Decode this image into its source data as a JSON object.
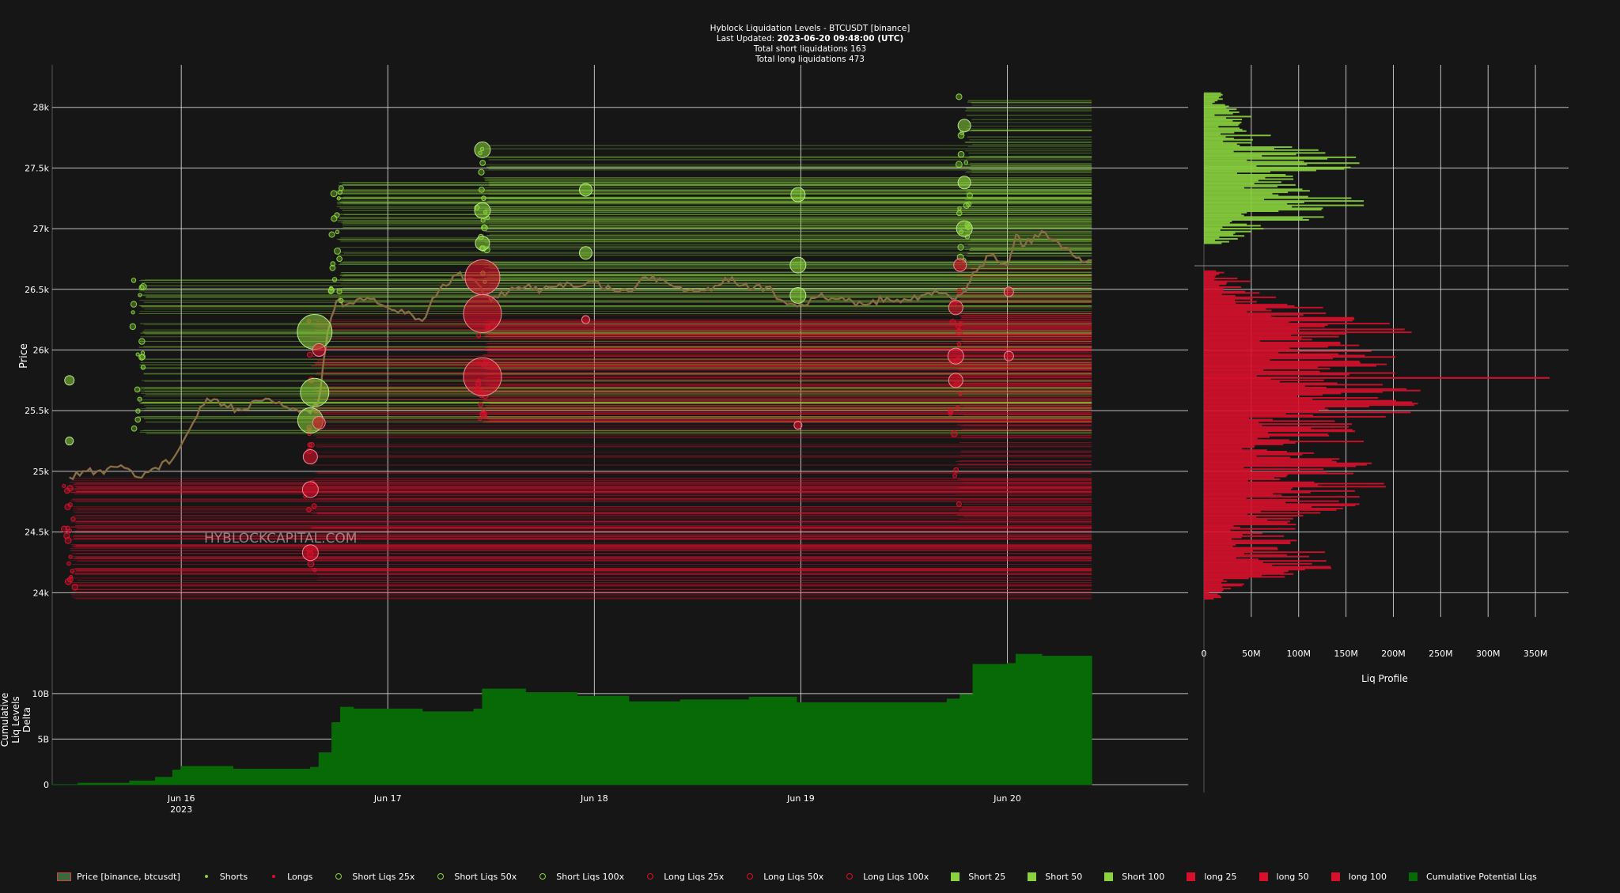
{
  "title": {
    "line1": "Hyblock Liquidation Levels - BTCUSDT [binance]",
    "line2_prefix": "Last Updated:",
    "line2_value": "2023-06-20 09:48:00 (UTC)",
    "line3": "Total short liquidations 163",
    "line4": "Total long liquidations 473"
  },
  "watermark": "HYBLOCKCAPITAL.COM",
  "colors": {
    "background": "#161616",
    "short": "#8ad33d",
    "long": "#d8102c",
    "price_up": "#3d9a3d",
    "price_down": "#d63a4c",
    "cumulative": "#086a06",
    "grid": "#dddddd"
  },
  "chart_data": [
    {
      "type": "line",
      "panel": "price",
      "ylabel": "Price",
      "ylim": [
        23800,
        28350
      ],
      "xlim": [
        "2023-06-15 09:00",
        "2023-06-20 21:00"
      ],
      "yticks": [
        {
          "value": 24000,
          "label": "24k"
        },
        {
          "value": 24500,
          "label": "24.5k"
        },
        {
          "value": 25000,
          "label": "25k"
        },
        {
          "value": 25500,
          "label": "25.5k"
        },
        {
          "value": 26000,
          "label": "26k"
        },
        {
          "value": 26500,
          "label": "26.5k"
        },
        {
          "value": 27000,
          "label": "27k"
        },
        {
          "value": 27500,
          "label": "27.5k"
        },
        {
          "value": 28000,
          "label": "28k"
        }
      ],
      "xticks": [
        {
          "value": "2023-06-16 00:00",
          "label": "Jun 16",
          "sub": "2023"
        },
        {
          "value": "2023-06-17 00:00",
          "label": "Jun 17",
          "sub": ""
        },
        {
          "value": "2023-06-18 00:00",
          "label": "Jun 18",
          "sub": ""
        },
        {
          "value": "2023-06-19 00:00",
          "label": "Jun 19",
          "sub": ""
        },
        {
          "value": "2023-06-20 00:00",
          "label": "Jun 20",
          "sub": ""
        }
      ],
      "price": {
        "name": "Price [binance, btcusdt]",
        "x": [
          "2023-06-15 11:00",
          "2023-06-15 13:00",
          "2023-06-15 15:00",
          "2023-06-15 17:00",
          "2023-06-15 19:00",
          "2023-06-15 21:00",
          "2023-06-15 23:00",
          "2023-06-16 01:00",
          "2023-06-16 03:00",
          "2023-06-16 05:00",
          "2023-06-16 07:00",
          "2023-06-16 09:00",
          "2023-06-16 11:00",
          "2023-06-16 13:00",
          "2023-06-16 15:00",
          "2023-06-16 16:00",
          "2023-06-16 17:00",
          "2023-06-16 18:00",
          "2023-06-16 20:00",
          "2023-06-16 22:00",
          "2023-06-17 00:00",
          "2023-06-17 02:00",
          "2023-06-17 04:00",
          "2023-06-17 06:00",
          "2023-06-17 08:00",
          "2023-06-17 10:00",
          "2023-06-17 12:00",
          "2023-06-17 14:00",
          "2023-06-17 16:00",
          "2023-06-17 18:00",
          "2023-06-17 20:00",
          "2023-06-17 22:00",
          "2023-06-18 00:00",
          "2023-06-18 02:00",
          "2023-06-18 04:00",
          "2023-06-18 06:00",
          "2023-06-18 08:00",
          "2023-06-18 10:00",
          "2023-06-18 12:00",
          "2023-06-18 14:00",
          "2023-06-18 16:00",
          "2023-06-18 18:00",
          "2023-06-18 20:00",
          "2023-06-18 22:00",
          "2023-06-19 00:00",
          "2023-06-19 02:00",
          "2023-06-19 04:00",
          "2023-06-19 06:00",
          "2023-06-19 08:00",
          "2023-06-19 10:00",
          "2023-06-19 12:00",
          "2023-06-19 14:00",
          "2023-06-19 16:00",
          "2023-06-19 18:00",
          "2023-06-19 19:00",
          "2023-06-19 20:00",
          "2023-06-19 22:00",
          "2023-06-20 00:00",
          "2023-06-20 01:00",
          "2023-06-20 02:00",
          "2023-06-20 04:00",
          "2023-06-20 06:00",
          "2023-06-20 08:00",
          "2023-06-20 09:48"
        ],
        "y": [
          24950,
          25000,
          24980,
          25050,
          24950,
          25030,
          25100,
          25350,
          25600,
          25550,
          25500,
          25580,
          25560,
          25520,
          25480,
          25600,
          26150,
          26400,
          26380,
          26420,
          26350,
          26300,
          26240,
          26500,
          26620,
          26580,
          26400,
          26480,
          26520,
          26500,
          26550,
          26520,
          26560,
          26500,
          26480,
          26600,
          26580,
          26520,
          26480,
          26530,
          26600,
          26500,
          26520,
          26400,
          26380,
          26440,
          26420,
          26400,
          26380,
          26430,
          26420,
          26450,
          26470,
          26420,
          26480,
          26640,
          26780,
          26700,
          26950,
          26860,
          26980,
          26880,
          26760,
          26740
        ]
      },
      "short_clusters": [
        {
          "x": "2023-06-16 15:30",
          "price": 26150,
          "size": 22
        },
        {
          "x": "2023-06-16 15:30",
          "price": 25650,
          "size": 18
        },
        {
          "x": "2023-06-16 15:00",
          "price": 25420,
          "size": 16
        },
        {
          "x": "2023-06-17 11:00",
          "price": 27650,
          "size": 10
        },
        {
          "x": "2023-06-17 11:00",
          "price": 27150,
          "size": 10
        },
        {
          "x": "2023-06-17 11:00",
          "price": 26880,
          "size": 9
        },
        {
          "x": "2023-06-17 23:00",
          "price": 26800,
          "size": 8
        },
        {
          "x": "2023-06-17 23:00",
          "price": 27320,
          "size": 8
        },
        {
          "x": "2023-06-18 23:40",
          "price": 26700,
          "size": 10
        },
        {
          "x": "2023-06-18 23:40",
          "price": 26450,
          "size": 10
        },
        {
          "x": "2023-06-18 23:40",
          "price": 27280,
          "size": 9
        },
        {
          "x": "2023-06-19 19:00",
          "price": 27850,
          "size": 8
        },
        {
          "x": "2023-06-19 19:00",
          "price": 27000,
          "size": 10
        },
        {
          "x": "2023-06-19 19:00",
          "price": 27380,
          "size": 8
        },
        {
          "x": "2023-06-15 11:00",
          "price": 25750,
          "size": 6
        },
        {
          "x": "2023-06-15 11:00",
          "price": 25250,
          "size": 5
        }
      ],
      "long_clusters": [
        {
          "x": "2023-06-17 11:00",
          "price": 26600,
          "size": 22
        },
        {
          "x": "2023-06-17 11:00",
          "price": 26300,
          "size": 24
        },
        {
          "x": "2023-06-17 11:00",
          "price": 25780,
          "size": 24
        },
        {
          "x": "2023-06-16 15:00",
          "price": 24330,
          "size": 10
        },
        {
          "x": "2023-06-16 15:00",
          "price": 24850,
          "size": 10
        },
        {
          "x": "2023-06-16 15:00",
          "price": 25120,
          "size": 9
        },
        {
          "x": "2023-06-16 16:00",
          "price": 26000,
          "size": 8
        },
        {
          "x": "2023-06-16 16:00",
          "price": 25400,
          "size": 8
        },
        {
          "x": "2023-06-19 18:00",
          "price": 25950,
          "size": 10
        },
        {
          "x": "2023-06-19 18:00",
          "price": 25750,
          "size": 9
        },
        {
          "x": "2023-06-19 18:00",
          "price": 26350,
          "size": 9
        },
        {
          "x": "2023-06-19 18:30",
          "price": 26700,
          "size": 8
        },
        {
          "x": "2023-06-20 00:10",
          "price": 25950,
          "size": 6
        },
        {
          "x": "2023-06-20 00:10",
          "price": 26480,
          "size": 6
        },
        {
          "x": "2023-06-17 23:00",
          "price": 26250,
          "size": 5
        },
        {
          "x": "2023-06-18 23:40",
          "price": 25380,
          "size": 5
        }
      ],
      "short_level_starts": [
        {
          "x": "2023-06-15 19:00",
          "from": 25300,
          "to": 26600
        },
        {
          "x": "2023-06-16 18:00",
          "from": 26400,
          "to": 27400
        },
        {
          "x": "2023-06-17 11:00",
          "from": 26500,
          "to": 27700
        },
        {
          "x": "2023-06-19 19:00",
          "from": 26600,
          "to": 28100
        }
      ],
      "long_level_starts": [
        {
          "x": "2023-06-15 11:00",
          "from": 23950,
          "to": 24950
        },
        {
          "x": "2023-06-16 15:00",
          "from": 24100,
          "to": 26300
        },
        {
          "x": "2023-06-17 11:00",
          "from": 25400,
          "to": 26250
        },
        {
          "x": "2023-06-19 18:00",
          "from": 24600,
          "to": 26700
        }
      ],
      "levels_end": "2023-06-20 09:48"
    },
    {
      "type": "bar",
      "panel": "liq_profile",
      "xlabel": "Liq Profile",
      "xlim": [
        0,
        385
      ],
      "x_unit": "M",
      "xticks": [
        {
          "value": 0,
          "label": "0"
        },
        {
          "value": 50,
          "label": "50M"
        },
        {
          "value": 100,
          "label": "100M"
        },
        {
          "value": 150,
          "label": "150M"
        },
        {
          "value": 200,
          "label": "200M"
        },
        {
          "value": 250,
          "label": "250M"
        },
        {
          "value": 300,
          "label": "300M"
        },
        {
          "value": 350,
          "label": "350M"
        }
      ],
      "shorts_total": {
        "prices": [
          26900,
          27000,
          27100,
          27200,
          27300,
          27400,
          27500,
          27600,
          27700,
          27800,
          27900,
          28000,
          28100
        ],
        "values": [
          30,
          60,
          120,
          170,
          110,
          80,
          165,
          150,
          70,
          60,
          50,
          30,
          20
        ]
      },
      "longs_total": {
        "prices": [
          24000,
          24200,
          24400,
          24600,
          24800,
          25000,
          25200,
          25400,
          25600,
          25800,
          26000,
          26200,
          26400,
          26600
        ],
        "values": [
          20,
          120,
          110,
          90,
          180,
          160,
          150,
          180,
          220,
          200,
          180,
          200,
          80,
          40
        ]
      },
      "max_bar": {
        "price": 25770,
        "value": 365
      }
    },
    {
      "type": "area",
      "panel": "cumulative",
      "name": "Cumulative Potential Liqs",
      "ylabel": "Cumulative Liq Levels Delta",
      "ylim": [
        0,
        14500
      ],
      "y_unit": "M",
      "yticks": [
        {
          "value": 0,
          "label": "0"
        },
        {
          "value": 5000,
          "label": "5B"
        },
        {
          "value": 10000,
          "label": "10B"
        }
      ],
      "x": [
        "2023-06-15 09:00",
        "2023-06-15 12:00",
        "2023-06-15 18:00",
        "2023-06-15 21:00",
        "2023-06-15 23:00",
        "2023-06-16 00:00",
        "2023-06-16 06:00",
        "2023-06-16 12:00",
        "2023-06-16 15:00",
        "2023-06-16 16:00",
        "2023-06-16 17:30",
        "2023-06-16 18:30",
        "2023-06-16 20:00",
        "2023-06-17 00:00",
        "2023-06-17 04:00",
        "2023-06-17 10:00",
        "2023-06-17 11:00",
        "2023-06-17 16:00",
        "2023-06-17 22:00",
        "2023-06-18 04:00",
        "2023-06-18 10:00",
        "2023-06-18 18:00",
        "2023-06-18 23:30",
        "2023-06-19 06:00",
        "2023-06-19 12:00",
        "2023-06-19 17:00",
        "2023-06-19 18:30",
        "2023-06-19 20:00",
        "2023-06-20 00:00",
        "2023-06-20 01:00",
        "2023-06-20 04:00",
        "2023-06-20 09:48"
      ],
      "y": [
        0,
        150,
        400,
        800,
        1600,
        2000,
        1700,
        1700,
        1900,
        3500,
        6800,
        8500,
        8300,
        8300,
        8000,
        8300,
        10500,
        10100,
        9700,
        9100,
        9300,
        9600,
        9000,
        9000,
        9000,
        9400,
        9900,
        13200,
        13300,
        14300,
        14100,
        13700
      ]
    }
  ],
  "legend": [
    {
      "label": "Price [binance, btcusdt]",
      "kind": "price",
      "color": "#3d9a3d"
    },
    {
      "label": "Shorts",
      "kind": "dot",
      "color": "#8ad33d"
    },
    {
      "label": "Longs",
      "kind": "dot",
      "color": "#d8102c"
    },
    {
      "label": "Short Liqs 25x",
      "kind": "ring",
      "color": "#8ad33d"
    },
    {
      "label": "Short Liqs 50x",
      "kind": "ring",
      "color": "#8ad33d"
    },
    {
      "label": "Short Liqs 100x",
      "kind": "ring",
      "color": "#8ad33d"
    },
    {
      "label": "Long Liqs 25x",
      "kind": "ring",
      "color": "#d8102c"
    },
    {
      "label": "Long Liqs 50x",
      "kind": "ring",
      "color": "#d8102c"
    },
    {
      "label": "Long Liqs 100x",
      "kind": "ring",
      "color": "#d8102c"
    },
    {
      "label": "Short 25",
      "kind": "square",
      "color": "#8ad33d"
    },
    {
      "label": "Short 50",
      "kind": "square",
      "color": "#8ad33d"
    },
    {
      "label": "Short 100",
      "kind": "square",
      "color": "#8ad33d"
    },
    {
      "label": "long 25",
      "kind": "square",
      "color": "#d8102c"
    },
    {
      "label": "long 50",
      "kind": "square",
      "color": "#d8102c"
    },
    {
      "label": "long 100",
      "kind": "square",
      "color": "#d8102c"
    },
    {
      "label": "Cumulative Potential Liqs",
      "kind": "square",
      "color": "#086a06"
    }
  ]
}
